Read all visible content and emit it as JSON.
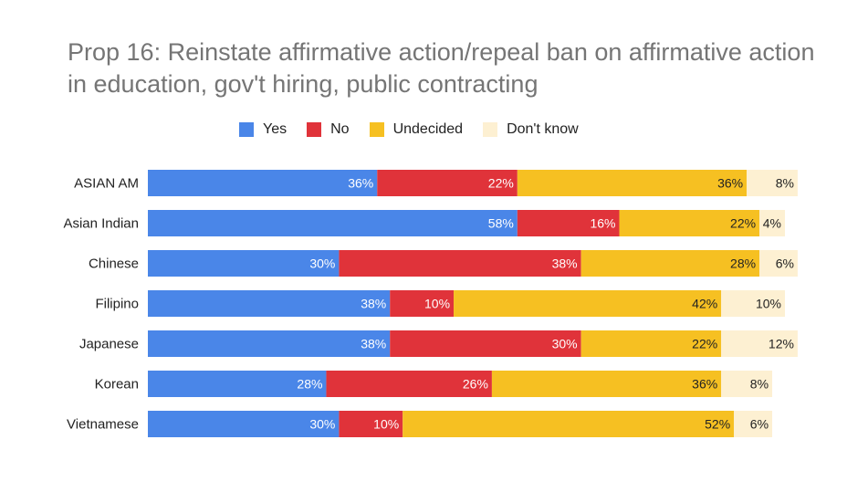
{
  "chart_data": {
    "type": "bar",
    "orientation": "horizontal",
    "stacked": "percent",
    "title": "Prop 16: Reinstate affirmative action/repeal ban on affirmative action in education, gov't hiring, public contracting",
    "legend_position": "top",
    "categories": [
      "ASIAN AM",
      "Asian Indian",
      "Chinese",
      "Filipino",
      "Japanese",
      "Korean",
      "Vietnamese"
    ],
    "series": [
      {
        "name": "Yes",
        "color": "#4a86e8",
        "label_color": "#ffffff",
        "values": [
          36,
          58,
          30,
          38,
          38,
          28,
          30
        ]
      },
      {
        "name": "No",
        "color": "#e0333a",
        "label_color": "#ffffff",
        "values": [
          22,
          16,
          38,
          10,
          30,
          26,
          10
        ]
      },
      {
        "name": "Undecided",
        "color": "#f6c022",
        "label_color": "#222222",
        "values": [
          36,
          22,
          28,
          42,
          22,
          36,
          52
        ]
      },
      {
        "name": "Don't know",
        "color": "#fdf0d2",
        "label_color": "#222222",
        "values": [
          8,
          4,
          6,
          10,
          12,
          8,
          6
        ]
      }
    ],
    "xlim": [
      0,
      100
    ],
    "grid": false
  }
}
